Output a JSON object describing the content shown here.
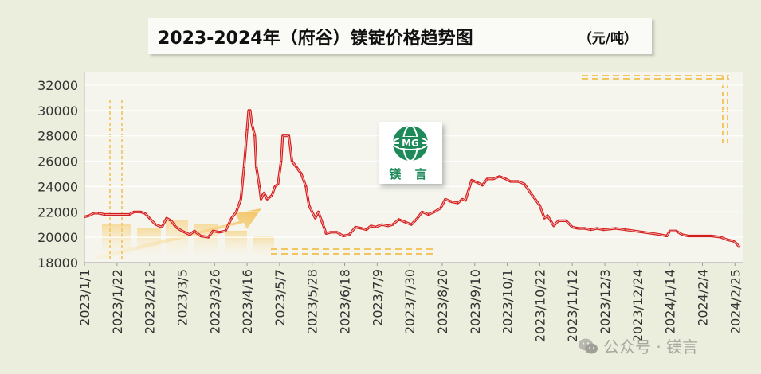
{
  "title": "2023-2024年（府谷）镁锭价格趋势图",
  "unit": "（元/吨）",
  "logo": {
    "text": "镁 言",
    "emblem": "MG",
    "icon": "globe-logo-icon",
    "color": "#1e8a5a"
  },
  "watermark": {
    "text": "公众号 · 镁言",
    "icon": "wechat-icon"
  },
  "colors": {
    "line": "#d51f1f",
    "background": "#eceedd",
    "plot": "#f5f5ee",
    "grid": "#ffffff",
    "accent": "#f2b640"
  },
  "chart_data": {
    "type": "line",
    "title": "2023-2024年（府谷）镁锭价格趋势图",
    "xlabel": "",
    "ylabel": "（元/吨）",
    "ylim": [
      18000,
      33000
    ],
    "yticks": [
      18000,
      20000,
      22000,
      24000,
      26000,
      28000,
      30000,
      32000
    ],
    "xlim": [
      "2023-01-01",
      "2024-03-01"
    ],
    "x_tick_labels": [
      "2023/1/1",
      "2023/1/22",
      "2023/2/12",
      "2023/3/5",
      "2023/3/26",
      "2023/4/16",
      "2023/5/7",
      "2023/5/28",
      "2023/6/18",
      "2023/7/9",
      "2023/7/30",
      "2023/8/20",
      "2023/9/10",
      "2023/10/1",
      "2023/10/22",
      "2023/11/12",
      "2023/12/3",
      "2023/12/24",
      "2024/1/14",
      "2024/2/4",
      "2024/2/25"
    ],
    "grid": true,
    "series": [
      {
        "name": "",
        "color": "#d51f1f",
        "points": [
          [
            "2023-01-01",
            21600
          ],
          [
            "2023-01-04",
            21700
          ],
          [
            "2023-01-07",
            21900
          ],
          [
            "2023-01-10",
            21900
          ],
          [
            "2023-01-14",
            21800
          ],
          [
            "2023-01-30",
            21800
          ],
          [
            "2023-02-02",
            22000
          ],
          [
            "2023-02-06",
            22000
          ],
          [
            "2023-02-09",
            21900
          ],
          [
            "2023-02-12",
            21500
          ],
          [
            "2023-02-16",
            21000
          ],
          [
            "2023-02-20",
            20800
          ],
          [
            "2023-02-23",
            21500
          ],
          [
            "2023-02-26",
            21300
          ],
          [
            "2023-03-01",
            20800
          ],
          [
            "2023-03-05",
            20500
          ],
          [
            "2023-03-10",
            20200
          ],
          [
            "2023-03-13",
            20500
          ],
          [
            "2023-03-17",
            20100
          ],
          [
            "2023-03-22",
            20000
          ],
          [
            "2023-03-25",
            20500
          ],
          [
            "2023-03-29",
            20400
          ],
          [
            "2023-04-02",
            20500
          ],
          [
            "2023-04-06",
            21500
          ],
          [
            "2023-04-09",
            22000
          ],
          [
            "2023-04-12",
            23000
          ],
          [
            "2023-04-14",
            25500
          ],
          [
            "2023-04-16",
            28500
          ],
          [
            "2023-04-17",
            30000
          ],
          [
            "2023-04-18",
            30000
          ],
          [
            "2023-04-19",
            29000
          ],
          [
            "2023-04-21",
            28000
          ],
          [
            "2023-04-22",
            25500
          ],
          [
            "2023-04-24",
            24000
          ],
          [
            "2023-04-25",
            23000
          ],
          [
            "2023-04-27",
            23500
          ],
          [
            "2023-04-29",
            23000
          ],
          [
            "2023-05-02",
            23300
          ],
          [
            "2023-05-04",
            24000
          ],
          [
            "2023-05-06",
            24200
          ],
          [
            "2023-05-08",
            26000
          ],
          [
            "2023-05-09",
            28000
          ],
          [
            "2023-05-13",
            28000
          ],
          [
            "2023-05-15",
            26000
          ],
          [
            "2023-05-18",
            25500
          ],
          [
            "2023-05-21",
            25000
          ],
          [
            "2023-05-24",
            24000
          ],
          [
            "2023-05-26",
            22500
          ],
          [
            "2023-05-28",
            22000
          ],
          [
            "2023-05-30",
            21500
          ],
          [
            "2023-06-01",
            22000
          ],
          [
            "2023-06-04",
            21000
          ],
          [
            "2023-06-06",
            20300
          ],
          [
            "2023-06-09",
            20400
          ],
          [
            "2023-06-13",
            20400
          ],
          [
            "2023-06-17",
            20100
          ],
          [
            "2023-06-21",
            20200
          ],
          [
            "2023-06-25",
            20800
          ],
          [
            "2023-06-29",
            20700
          ],
          [
            "2023-07-02",
            20600
          ],
          [
            "2023-07-05",
            20900
          ],
          [
            "2023-07-08",
            20800
          ],
          [
            "2023-07-12",
            21000
          ],
          [
            "2023-07-16",
            20900
          ],
          [
            "2023-07-19",
            21000
          ],
          [
            "2023-07-23",
            21400
          ],
          [
            "2023-07-27",
            21200
          ],
          [
            "2023-07-31",
            21000
          ],
          [
            "2023-08-04",
            21500
          ],
          [
            "2023-08-07",
            22000
          ],
          [
            "2023-08-11",
            21800
          ],
          [
            "2023-08-15",
            22000
          ],
          [
            "2023-08-19",
            22300
          ],
          [
            "2023-08-22",
            23000
          ],
          [
            "2023-08-26",
            22800
          ],
          [
            "2023-08-30",
            22700
          ],
          [
            "2023-09-02",
            23000
          ],
          [
            "2023-09-04",
            22900
          ],
          [
            "2023-09-08",
            24500
          ],
          [
            "2023-09-12",
            24300
          ],
          [
            "2023-09-15",
            24100
          ],
          [
            "2023-09-18",
            24600
          ],
          [
            "2023-09-22",
            24600
          ],
          [
            "2023-09-26",
            24800
          ],
          [
            "2023-09-30",
            24600
          ],
          [
            "2023-10-03",
            24400
          ],
          [
            "2023-10-08",
            24400
          ],
          [
            "2023-10-12",
            24200
          ],
          [
            "2023-10-16",
            23500
          ],
          [
            "2023-10-19",
            23000
          ],
          [
            "2023-10-22",
            22500
          ],
          [
            "2023-10-25",
            21500
          ],
          [
            "2023-10-27",
            21700
          ],
          [
            "2023-10-29",
            21300
          ],
          [
            "2023-10-31",
            20900
          ],
          [
            "2023-11-03",
            21300
          ],
          [
            "2023-11-08",
            21300
          ],
          [
            "2023-11-12",
            20800
          ],
          [
            "2023-11-16",
            20700
          ],
          [
            "2023-11-20",
            20700
          ],
          [
            "2023-11-24",
            20600
          ],
          [
            "2023-11-28",
            20700
          ],
          [
            "2023-12-02",
            20600
          ],
          [
            "2023-12-10",
            20700
          ],
          [
            "2023-12-16",
            20600
          ],
          [
            "2023-12-22",
            20500
          ],
          [
            "2023-12-28",
            20400
          ],
          [
            "2024-01-03",
            20300
          ],
          [
            "2024-01-08",
            20200
          ],
          [
            "2024-01-12",
            20100
          ],
          [
            "2024-01-14",
            20500
          ],
          [
            "2024-01-18",
            20500
          ],
          [
            "2024-01-22",
            20200
          ],
          [
            "2024-01-26",
            20100
          ],
          [
            "2024-02-02",
            20100
          ],
          [
            "2024-02-10",
            20100
          ],
          [
            "2024-02-16",
            20000
          ],
          [
            "2024-02-20",
            19800
          ],
          [
            "2024-02-24",
            19700
          ],
          [
            "2024-02-26",
            19500
          ],
          [
            "2024-02-28",
            19200
          ]
        ]
      }
    ]
  }
}
